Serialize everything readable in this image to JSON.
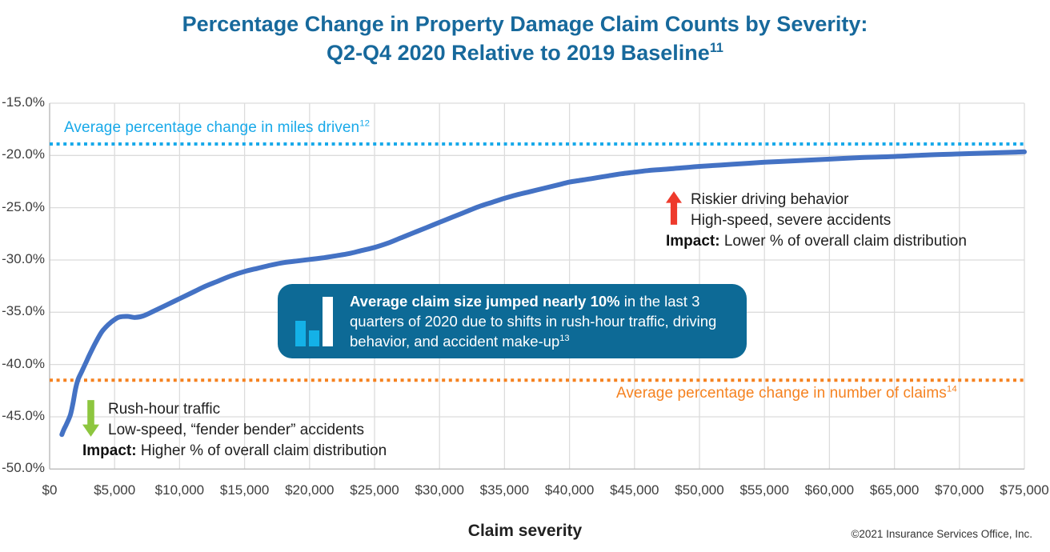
{
  "page": {
    "title_line1": "Percentage Change in Property Damage Claim Counts by Severity:",
    "title_line2": "Q2-Q4 2020 Relative to 2019 Baseline",
    "title_footnote": "11"
  },
  "chart_data": {
    "type": "line",
    "title": "Percentage Change in Property Damage Claim Counts by Severity: Q2-Q4 2020 Relative to 2019 Baseline",
    "xlabel": "Claim severity",
    "ylabel": "",
    "xlim": [
      0,
      75000
    ],
    "ylim": [
      -50,
      -15
    ],
    "grid": true,
    "x_tick_values": [
      0,
      5000,
      10000,
      15000,
      20000,
      25000,
      30000,
      35000,
      40000,
      45000,
      50000,
      55000,
      60000,
      65000,
      70000,
      75000
    ],
    "x_tick_labels": [
      "$0",
      "$5,000",
      "$10,000",
      "$15,000",
      "$20,000",
      "$25,000",
      "$30,000",
      "$35,000",
      "$40,000",
      "$45,000",
      "$50,000",
      "$55,000",
      "$60,000",
      "$65,000",
      "$70,000",
      "$75,000"
    ],
    "y_tick_values": [
      -15,
      -20,
      -25,
      -30,
      -35,
      -40,
      -45,
      -50
    ],
    "y_tick_labels": [
      "-15.0%",
      "-20.0%",
      "-25.0%",
      "-30.0%",
      "-35.0%",
      "-40.0%",
      "-45.0%",
      "-50.0%"
    ],
    "series": [
      {
        "name": "Percentage change in property damage claim counts by severity",
        "color": "#4472c4",
        "points": [
          [
            940,
            -46.7
          ],
          [
            1100,
            -46.2
          ],
          [
            1300,
            -45.7
          ],
          [
            1600,
            -44.8
          ],
          [
            1800,
            -43.7
          ],
          [
            2000,
            -42.3
          ],
          [
            2200,
            -41.4
          ],
          [
            2500,
            -40.6
          ],
          [
            2800,
            -39.8
          ],
          [
            3100,
            -39.0
          ],
          [
            3500,
            -38.0
          ],
          [
            4000,
            -36.9
          ],
          [
            4500,
            -36.2
          ],
          [
            5000,
            -35.7
          ],
          [
            5400,
            -35.45
          ],
          [
            6000,
            -35.4
          ],
          [
            6600,
            -35.5
          ],
          [
            7200,
            -35.35
          ],
          [
            8000,
            -34.9
          ],
          [
            9000,
            -34.3
          ],
          [
            10000,
            -33.7
          ],
          [
            11000,
            -33.1
          ],
          [
            12000,
            -32.5
          ],
          [
            13000,
            -32.0
          ],
          [
            14000,
            -31.5
          ],
          [
            15000,
            -31.1
          ],
          [
            16000,
            -30.8
          ],
          [
            17000,
            -30.5
          ],
          [
            18000,
            -30.25
          ],
          [
            19000,
            -30.1
          ],
          [
            20000,
            -29.95
          ],
          [
            21000,
            -29.8
          ],
          [
            22000,
            -29.6
          ],
          [
            23000,
            -29.4
          ],
          [
            24000,
            -29.1
          ],
          [
            25000,
            -28.8
          ],
          [
            26000,
            -28.4
          ],
          [
            27000,
            -27.9
          ],
          [
            28000,
            -27.4
          ],
          [
            29000,
            -26.9
          ],
          [
            30000,
            -26.4
          ],
          [
            31000,
            -25.9
          ],
          [
            32000,
            -25.4
          ],
          [
            33000,
            -24.9
          ],
          [
            34000,
            -24.5
          ],
          [
            35000,
            -24.1
          ],
          [
            36000,
            -23.75
          ],
          [
            37000,
            -23.45
          ],
          [
            38000,
            -23.15
          ],
          [
            39000,
            -22.85
          ],
          [
            40000,
            -22.55
          ],
          [
            41000,
            -22.35
          ],
          [
            42000,
            -22.15
          ],
          [
            43000,
            -21.95
          ],
          [
            44000,
            -21.75
          ],
          [
            45000,
            -21.6
          ],
          [
            46000,
            -21.45
          ],
          [
            47000,
            -21.35
          ],
          [
            48000,
            -21.25
          ],
          [
            49000,
            -21.15
          ],
          [
            50000,
            -21.05
          ],
          [
            52500,
            -20.85
          ],
          [
            55000,
            -20.65
          ],
          [
            57500,
            -20.5
          ],
          [
            60000,
            -20.35
          ],
          [
            62500,
            -20.2
          ],
          [
            65000,
            -20.1
          ],
          [
            67500,
            -19.95
          ],
          [
            70000,
            -19.85
          ],
          [
            72500,
            -19.75
          ],
          [
            75000,
            -19.65
          ]
        ]
      }
    ],
    "reference_lines": [
      {
        "label": "Average percentage change in miles driven",
        "footnote": "12",
        "value": -18.9,
        "color": "#18a9e9",
        "style": "dotted"
      },
      {
        "label": "Average percentage change in number of claims",
        "footnote": "14",
        "value": -41.5,
        "color": "#f58220",
        "style": "dotted"
      }
    ],
    "legend_position": "none"
  },
  "annotations": {
    "high_severity": {
      "line1": "Riskier driving behavior",
      "line2": "High-speed, severe accidents",
      "impact_label": "Impact:",
      "impact_text": " Lower % of overall claim distribution",
      "arrow_color": "#ee3a2c"
    },
    "low_severity": {
      "line1": "Rush-hour traffic",
      "line2": "Low-speed, “fender bender” accidents",
      "impact_label": "Impact:",
      "impact_text": " Higher % of overall claim distribution",
      "arrow_color": "#8dc63f"
    },
    "callout": {
      "bold_text": "Average claim size jumped nearly 10%",
      "text": " in the last 3 quarters of 2020 due to shifts in rush-hour traffic, driving behavior, and accident make-up",
      "footnote": "13",
      "bg_color": "#0d6a96",
      "icon_bar_color": "#14b1e7"
    }
  },
  "footer": {
    "xlabel": "Claim severity",
    "copyright": "©2021 Insurance Services Office, Inc."
  }
}
